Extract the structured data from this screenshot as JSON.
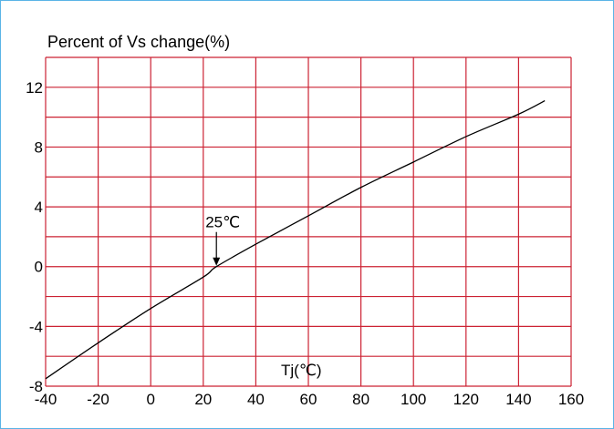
{
  "chart_data": {
    "type": "line",
    "title": "Percent of Vs change(%)",
    "xlabel": "Tj(℃)",
    "ylabel": "",
    "xlim": [
      -40,
      160
    ],
    "ylim": [
      -8,
      14
    ],
    "x_ticks": [
      -40,
      -20,
      0,
      20,
      40,
      60,
      80,
      100,
      120,
      140,
      160
    ],
    "x_tick_labels": [
      "-40",
      "-20",
      "0",
      "20",
      "40",
      "60",
      "80",
      "100",
      "120",
      "140",
      "160"
    ],
    "y_ticks": [
      -8,
      -4,
      0,
      4,
      8,
      12
    ],
    "y_tick_labels": [
      "-8",
      "-4",
      "0",
      "4",
      "8",
      "12"
    ],
    "grid": true,
    "grid_color": "#cc2233",
    "line_color": "#000000",
    "series": [
      {
        "x": [
          -40,
          -20,
          0,
          20,
          25,
          40,
          60,
          80,
          100,
          120,
          140,
          150
        ],
        "values": [
          -7.5,
          -5.1,
          -2.8,
          -0.7,
          0,
          1.5,
          3.4,
          5.3,
          7.0,
          8.7,
          10.2,
          11.1
        ]
      }
    ],
    "annotations": [
      {
        "text": "25℃",
        "x": 25,
        "y": 0,
        "arrow": true
      }
    ]
  }
}
